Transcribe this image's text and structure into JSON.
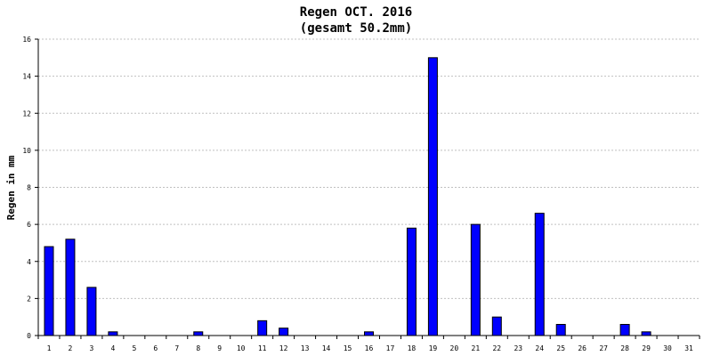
{
  "chart_data": {
    "type": "bar",
    "title": "Regen OCT. 2016",
    "subtitle": "(gesamt 50.2mm)",
    "xlabel": "",
    "ylabel": "Regen in mm",
    "ylim": [
      0,
      16
    ],
    "yticks": [
      0,
      2,
      4,
      6,
      8,
      10,
      12,
      14,
      16
    ],
    "grid": true,
    "bar_color": "#0000ff",
    "categories": [
      "1",
      "2",
      "3",
      "4",
      "5",
      "6",
      "7",
      "8",
      "9",
      "10",
      "11",
      "12",
      "13",
      "14",
      "15",
      "16",
      "17",
      "18",
      "19",
      "20",
      "21",
      "22",
      "23",
      "24",
      "25",
      "26",
      "27",
      "28",
      "29",
      "30",
      "31"
    ],
    "values": [
      4.8,
      5.2,
      2.6,
      0.2,
      0,
      0,
      0,
      0.2,
      0,
      0,
      0.8,
      0.4,
      0,
      0,
      0,
      0.2,
      0,
      5.8,
      15.0,
      0,
      6.0,
      1.0,
      0,
      6.6,
      0.6,
      0,
      0,
      0.6,
      0.2,
      0,
      0
    ]
  }
}
